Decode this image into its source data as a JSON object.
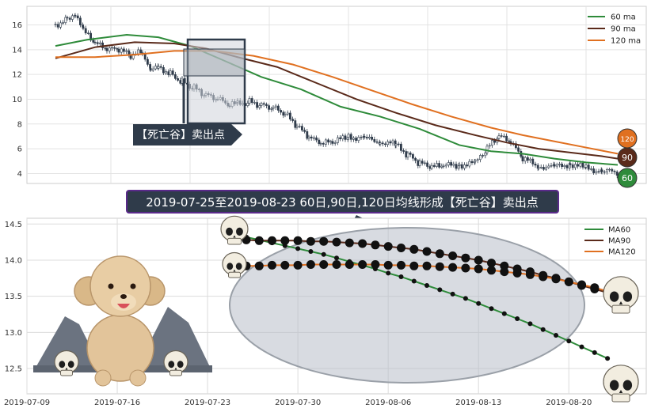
{
  "top_chart": {
    "y_ticks": [
      "16",
      "14",
      "12",
      "10",
      "8",
      "6",
      "4"
    ],
    "legend": [
      {
        "label": "60 ma",
        "color": "#2e8b3a"
      },
      {
        "label": "90 ma",
        "color": "#5a2a1a"
      },
      {
        "label": "120 ma",
        "color": "#e07020"
      }
    ],
    "callout": "【死亡谷】卖出点",
    "badges": [
      "120",
      "90",
      "60"
    ]
  },
  "banner": "2019-07-25至2019-08-23 60日,90日,120日均线形成【死亡谷】卖出点",
  "bottom_chart": {
    "y_ticks": [
      "14.5",
      "14.0",
      "13.5",
      "13.0",
      "12.5"
    ],
    "x_ticks": [
      "2019-07-09",
      "2019-07-16",
      "2019-07-23",
      "2019-07-30",
      "2019-08-06",
      "2019-08-13",
      "2019-08-20"
    ],
    "legend": [
      {
        "label": "MA60",
        "color": "#2e8b3a"
      },
      {
        "label": "MA90",
        "color": "#5a2a1a"
      },
      {
        "label": "MA120",
        "color": "#e07020"
      }
    ]
  },
  "chart_data": {
    "type": "line",
    "x": [
      "2019-07-25",
      "2019-07-26",
      "2019-07-27",
      "2019-07-28",
      "2019-07-29",
      "2019-07-30",
      "2019-07-31",
      "2019-08-01",
      "2019-08-02",
      "2019-08-03",
      "2019-08-04",
      "2019-08-05",
      "2019-08-06",
      "2019-08-07",
      "2019-08-08",
      "2019-08-09",
      "2019-08-10",
      "2019-08-11",
      "2019-08-12",
      "2019-08-13",
      "2019-08-14",
      "2019-08-15",
      "2019-08-16",
      "2019-08-17",
      "2019-08-18",
      "2019-08-19",
      "2019-08-20",
      "2019-08-21",
      "2019-08-22",
      "2019-08-23"
    ],
    "series": [
      {
        "name": "MA60",
        "color": "#2e8b3a",
        "values": [
          14.35,
          14.32,
          14.28,
          14.24,
          14.2,
          14.16,
          14.12,
          14.08,
          14.03,
          13.98,
          13.93,
          13.88,
          13.82,
          13.77,
          13.71,
          13.65,
          13.59,
          13.53,
          13.47,
          13.4,
          13.33,
          13.26,
          13.19,
          13.12,
          13.04,
          12.96,
          12.88,
          12.8,
          12.72,
          12.64
        ]
      },
      {
        "name": "MA90",
        "color": "#5a2a1a",
        "values": [
          14.3,
          14.28,
          14.27,
          14.27,
          14.27,
          14.27,
          14.26,
          14.26,
          14.25,
          14.24,
          14.23,
          14.21,
          14.19,
          14.17,
          14.15,
          14.12,
          14.09,
          14.06,
          14.03,
          14.0,
          13.96,
          13.92,
          13.88,
          13.84,
          13.79,
          13.75,
          13.7,
          13.65,
          13.6,
          13.55
        ]
      },
      {
        "name": "MA120",
        "color": "#e07020",
        "values": [
          13.91,
          13.92,
          13.92,
          13.93,
          13.93,
          13.93,
          13.94,
          13.94,
          13.94,
          13.94,
          13.94,
          13.94,
          13.93,
          13.93,
          13.92,
          13.92,
          13.91,
          13.9,
          13.89,
          13.88,
          13.86,
          13.84,
          13.82,
          13.8,
          13.77,
          13.74,
          13.7,
          13.66,
          13.62,
          13.57
        ]
      }
    ],
    "ylim": [
      12.15,
      14.58
    ],
    "xlim": [
      "2019-07-09",
      "2019-08-26"
    ]
  }
}
